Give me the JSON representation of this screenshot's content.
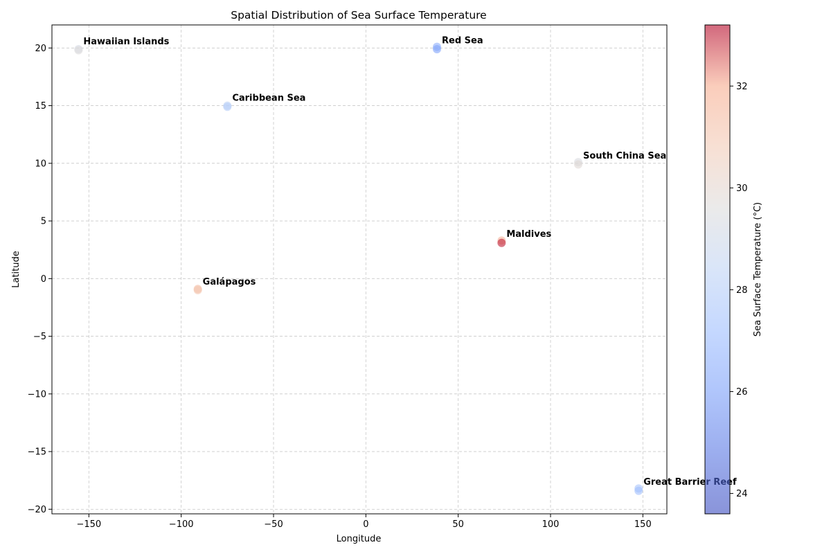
{
  "chart_data": {
    "type": "scatter",
    "title": "Spatial Distribution of Sea Surface Temperature",
    "xlabel": "Longitude",
    "ylabel": "Latitude",
    "xlim": [
      -170,
      163
    ],
    "ylim": [
      -20.4,
      22
    ],
    "xticks": [
      -150,
      -100,
      -50,
      0,
      50,
      100,
      150
    ],
    "yticks": [
      -20,
      -15,
      -10,
      -5,
      0,
      5,
      10,
      15,
      20
    ],
    "grid": true,
    "colorbar": {
      "label": "Sea Surface Temperature (°C)",
      "range": [
        23.6,
        33.2
      ],
      "ticks": [
        24,
        26,
        28,
        30,
        32
      ],
      "colormap": "coolwarm",
      "alpha": 0.6
    },
    "points": [
      {
        "lon": -155.6,
        "lat": 19.9,
        "sst": 29.2
      },
      {
        "lon": -155.6,
        "lat": 19.8,
        "sst": 29.6
      },
      {
        "lon": 38.5,
        "lat": 20.1,
        "sst": 26.6
      },
      {
        "lon": 38.5,
        "lat": 19.9,
        "sst": 26.2
      },
      {
        "lon": -75.0,
        "lat": 15.0,
        "sst": 28.4
      },
      {
        "lon": -75.0,
        "lat": 14.9,
        "sst": 28.0
      },
      {
        "lon": 115.0,
        "lat": 10.1,
        "sst": 29.4
      },
      {
        "lon": 115.0,
        "lat": 9.9,
        "sst": 29.8
      },
      {
        "lon": 73.5,
        "lat": 3.3,
        "sst": 31.6
      },
      {
        "lon": 73.5,
        "lat": 3.1,
        "sst": 33.0
      },
      {
        "lon": -91.0,
        "lat": -0.9,
        "sst": 31.4
      },
      {
        "lon": -91.0,
        "lat": -1.0,
        "sst": 31.0
      },
      {
        "lon": 147.7,
        "lat": -18.2,
        "sst": 27.6
      },
      {
        "lon": 147.7,
        "lat": -18.4,
        "sst": 27.3
      }
    ],
    "annotations": [
      {
        "text": "Hawaiian Islands",
        "lon": -155.6,
        "lat": 19.9
      },
      {
        "text": "Red Sea",
        "lon": 38.5,
        "lat": 20.0
      },
      {
        "text": "Caribbean Sea",
        "lon": -75.0,
        "lat": 15.0
      },
      {
        "text": "South China Sea",
        "lon": 115.0,
        "lat": 10.0
      },
      {
        "text": "Maldives",
        "lon": 73.5,
        "lat": 3.2
      },
      {
        "text": "Galápagos",
        "lon": -91.0,
        "lat": -0.95
      },
      {
        "text": "Great Barrier Reef",
        "lon": 147.7,
        "lat": -18.3
      }
    ]
  }
}
